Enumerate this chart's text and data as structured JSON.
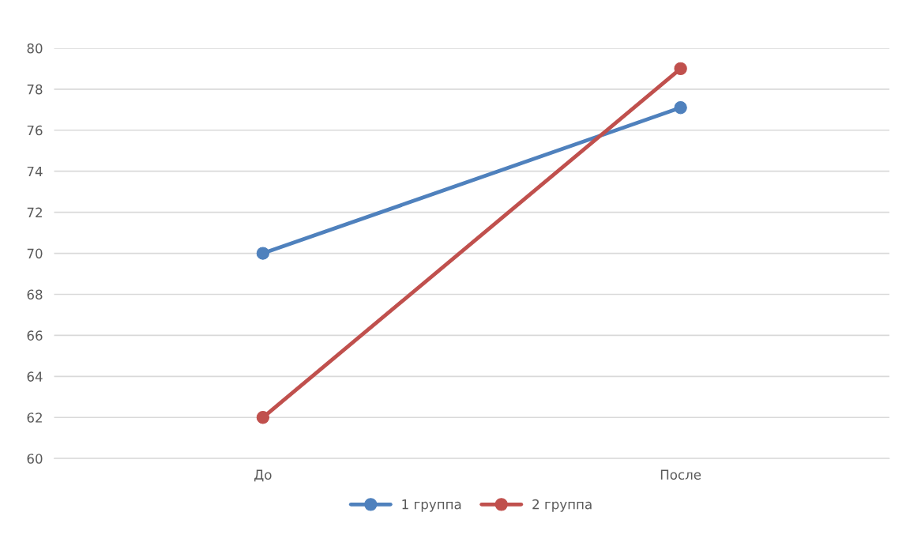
{
  "chart_data": {
    "type": "line",
    "categories": [
      "До",
      "После"
    ],
    "series": [
      {
        "name": "1 группа",
        "color": "#4f81bd",
        "values": [
          70,
          77.1
        ]
      },
      {
        "name": "2 группа",
        "color": "#c0504d",
        "values": [
          62,
          79
        ]
      }
    ],
    "ylim": [
      60,
      80
    ],
    "yticks": [
      60,
      62,
      64,
      66,
      68,
      70,
      72,
      74,
      76,
      78,
      80
    ],
    "grid": "y",
    "legend": "bottom",
    "marker": "circle",
    "line_style": "solid"
  }
}
